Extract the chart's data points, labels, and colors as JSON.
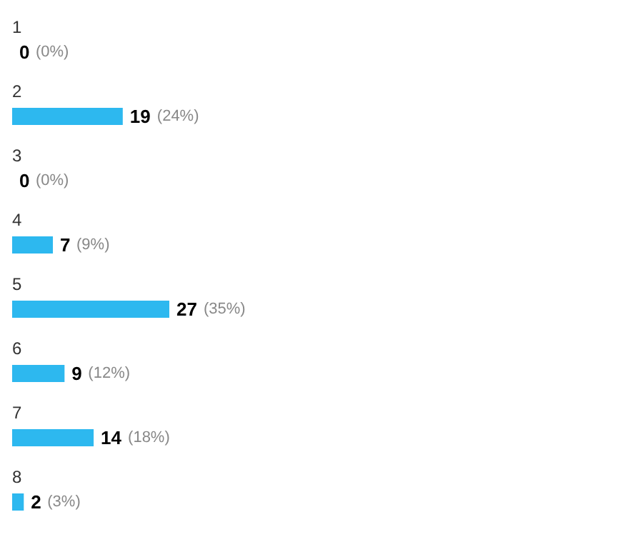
{
  "chart_data": {
    "type": "bar",
    "orientation": "horizontal",
    "categories": [
      "1",
      "2",
      "3",
      "4",
      "5",
      "6",
      "7",
      "8"
    ],
    "values": [
      0,
      19,
      0,
      7,
      27,
      9,
      14,
      2
    ],
    "color": "#2db8ef",
    "data_labels": true,
    "grid": false,
    "annotations": [
      {
        "text": "(0%)",
        "x": 0,
        "y": "1"
      },
      {
        "text": "(24%)",
        "x": 19,
        "y": "2"
      },
      {
        "text": "(0%)",
        "x": 0,
        "y": "3"
      },
      {
        "text": "(9%)",
        "x": 7,
        "y": "4"
      },
      {
        "text": "(35%)",
        "x": 27,
        "y": "5"
      },
      {
        "text": "(12%)",
        "x": 9,
        "y": "6"
      },
      {
        "text": "(18%)",
        "x": 14,
        "y": "7"
      },
      {
        "text": "(3%)",
        "x": 2,
        "y": "8"
      }
    ]
  }
}
